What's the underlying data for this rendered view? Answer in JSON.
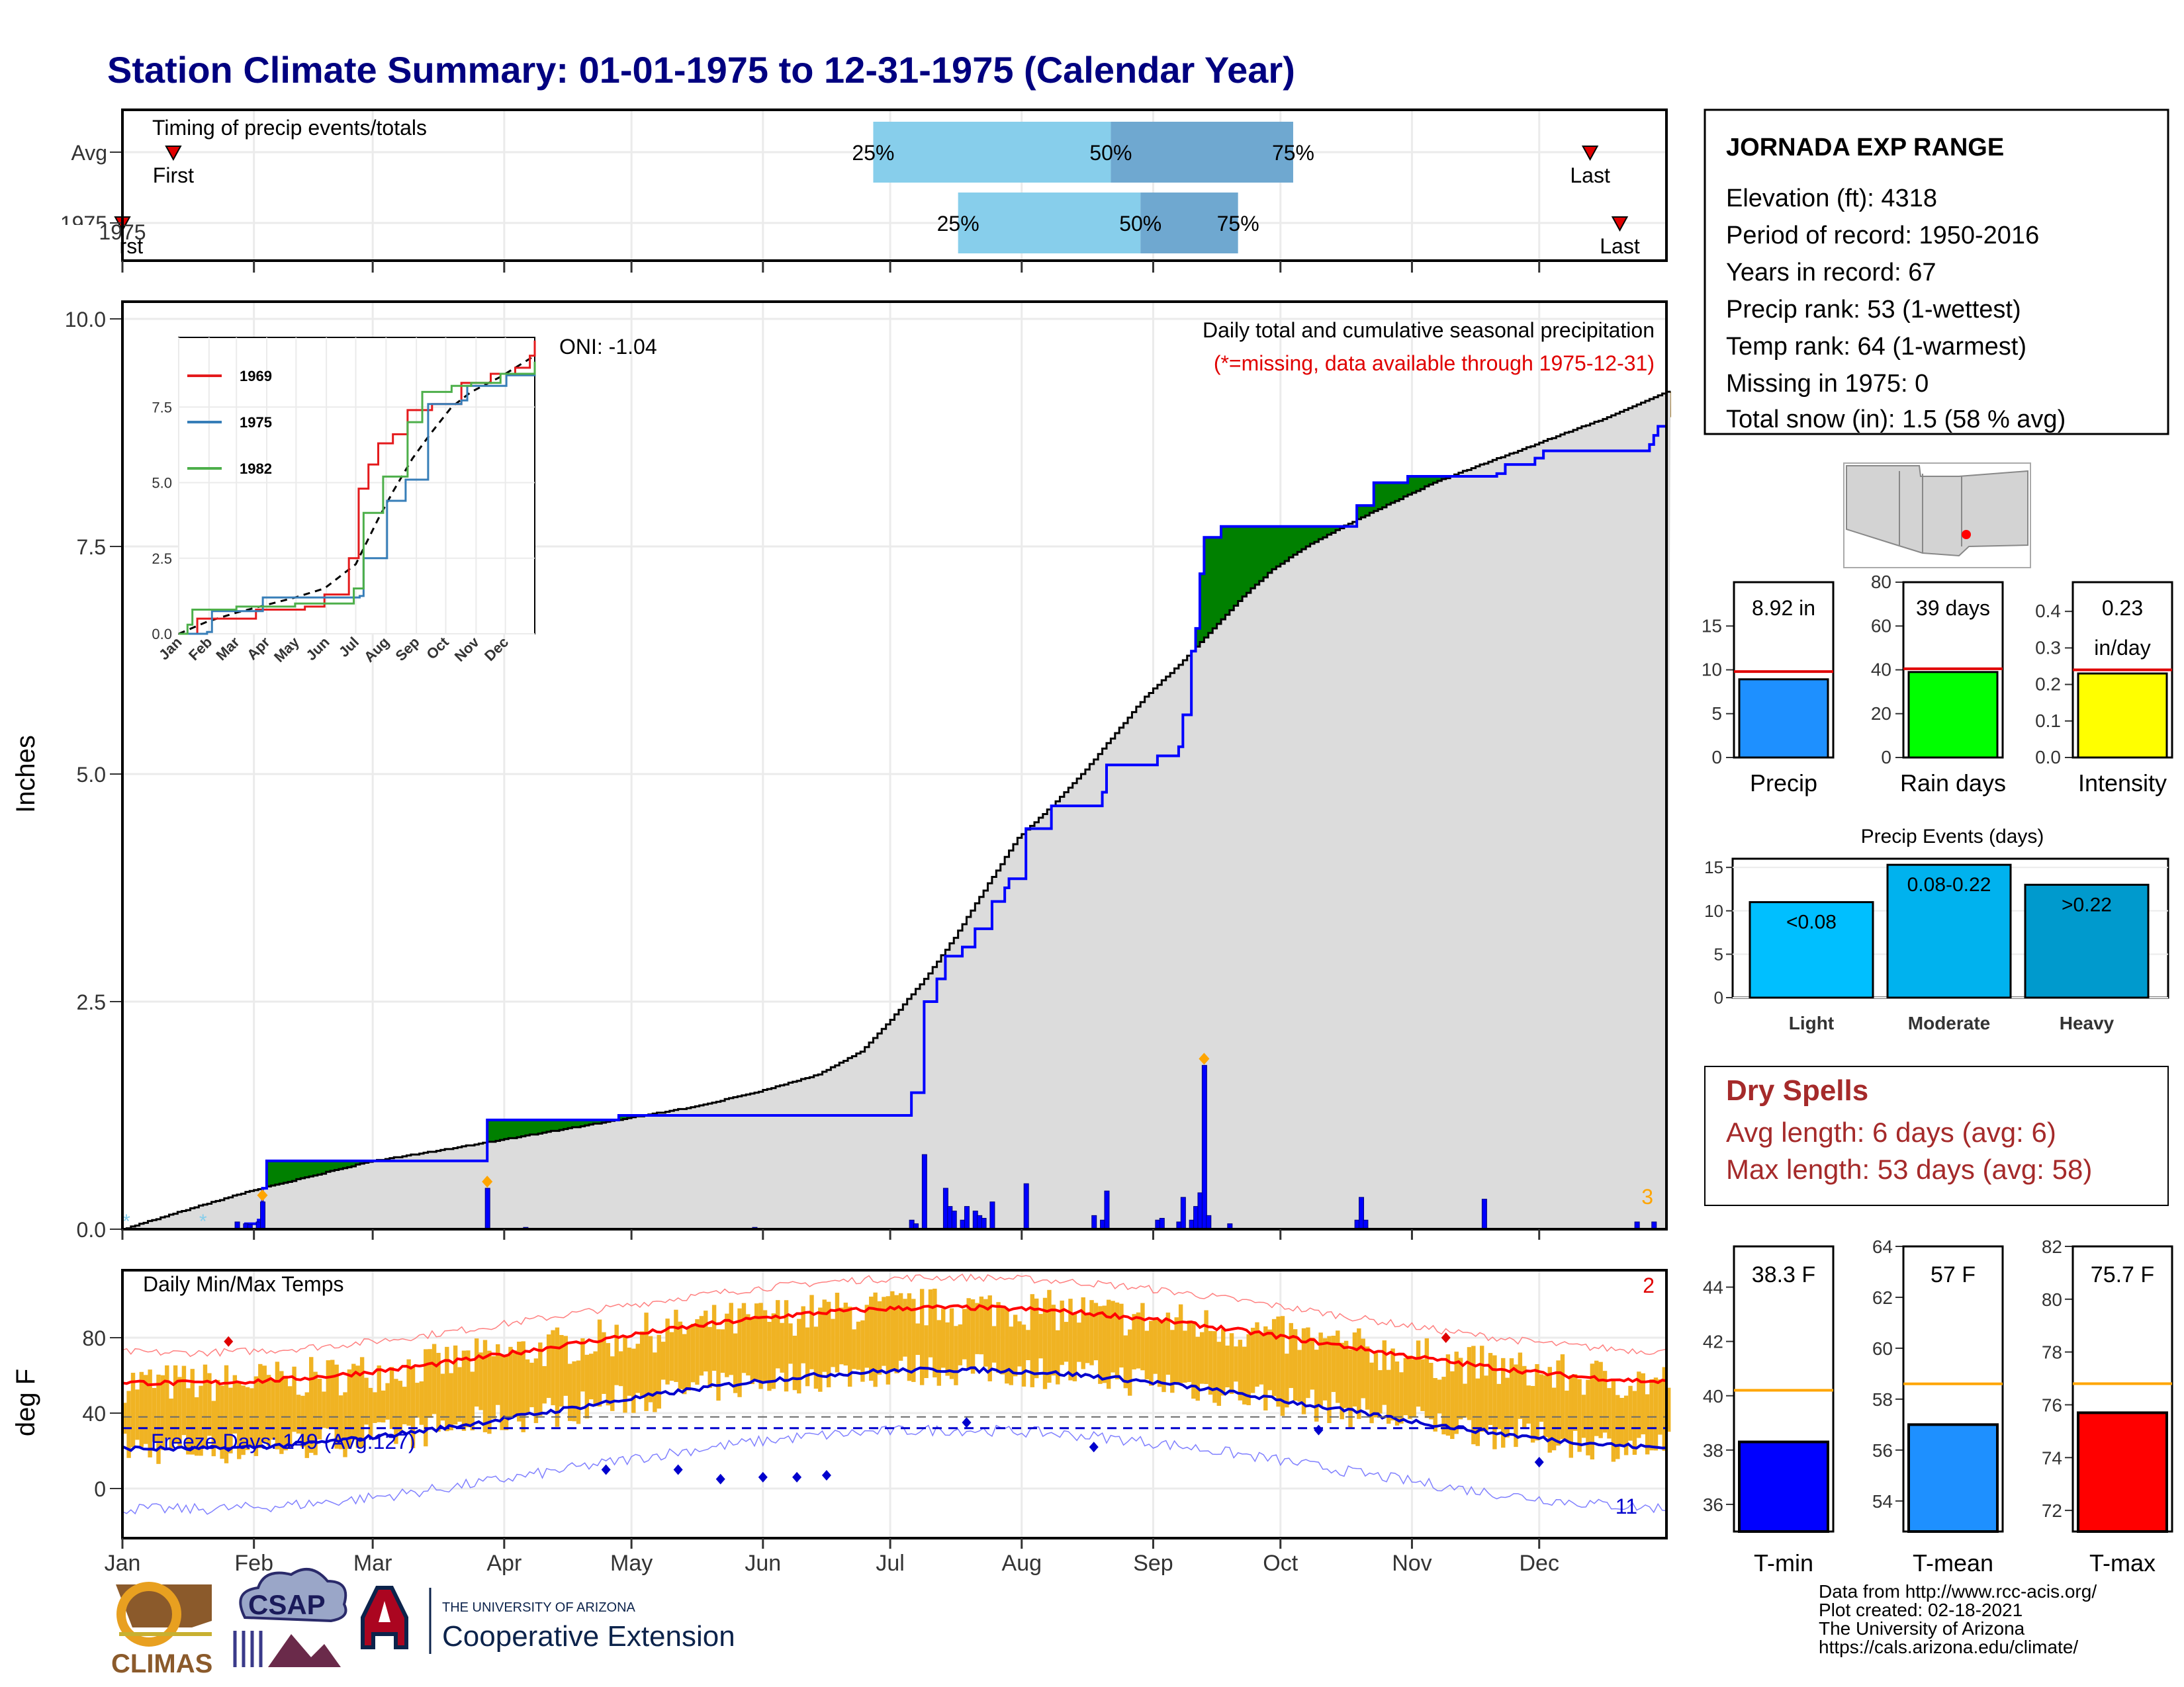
{
  "title": "Station Climate Summary: 01-01-1975 to 12-31-1975 (Calendar Year)",
  "station": {
    "name": "JORNADA EXP RANGE",
    "lines": [
      "Elevation (ft): 4318",
      "Period of record: 1950-2016",
      "Years in record: 67",
      "Precip rank: 53 (1-wettest)",
      "Temp rank: 64 (1-warmest)",
      "Missing in 1975: 0",
      "Total snow (in): 1.5 (58 % avg)"
    ]
  },
  "months": [
    "Jan",
    "Feb",
    "Mar",
    "Apr",
    "May",
    "Jun",
    "Jul",
    "Aug",
    "Sep",
    "Oct",
    "Nov",
    "Dec"
  ],
  "timing": {
    "label": "Timing of precip events/totals",
    "rows": [
      "Avg",
      "1975"
    ],
    "pct_labels": [
      "25%",
      "50%",
      "75%"
    ],
    "first": "First",
    "last": "Last",
    "avg": {
      "first_doy": 13,
      "q25_doy": 178,
      "q50_doy": 234,
      "q75_doy": 277,
      "last_doy": 347
    },
    "y1975": {
      "first_doy": 1,
      "q25_doy": 198,
      "q50_doy": 241,
      "q75_doy": 264,
      "last_doy": 354
    }
  },
  "precip": {
    "y_label": "Inches",
    "y_ticks": [
      "0.0",
      "2.5",
      "5.0",
      "7.5",
      "10.0"
    ],
    "oni": "ONI: -1.04",
    "caption1": "Daily total and cumulative seasonal precipitation",
    "caption2": "(*=missing, data available through 1975-12-31)",
    "snow_count": "3",
    "color_wetter": "#008000",
    "color_drier": "#8B5A00",
    "avg_cum": [
      [
        1,
        0.0
      ],
      [
        15,
        0.2
      ],
      [
        31,
        0.42
      ],
      [
        45,
        0.58
      ],
      [
        59,
        0.74
      ],
      [
        75,
        0.86
      ],
      [
        90,
        0.98
      ],
      [
        105,
        1.1
      ],
      [
        120,
        1.22
      ],
      [
        135,
        1.34
      ],
      [
        150,
        1.5
      ],
      [
        165,
        1.7
      ],
      [
        175,
        1.95
      ],
      [
        182,
        2.3
      ],
      [
        190,
        2.75
      ],
      [
        197,
        3.2
      ],
      [
        205,
        3.8
      ],
      [
        212,
        4.3
      ],
      [
        220,
        4.65
      ],
      [
        228,
        5.05
      ],
      [
        235,
        5.45
      ],
      [
        242,
        5.85
      ],
      [
        250,
        6.2
      ],
      [
        258,
        6.6
      ],
      [
        265,
        6.95
      ],
      [
        272,
        7.25
      ],
      [
        280,
        7.5
      ],
      [
        290,
        7.75
      ],
      [
        300,
        7.98
      ],
      [
        310,
        8.2
      ],
      [
        320,
        8.38
      ],
      [
        330,
        8.55
      ],
      [
        340,
        8.73
      ],
      [
        350,
        8.9
      ],
      [
        365,
        9.2
      ]
    ],
    "cum_1975": [
      [
        1,
        0.0
      ],
      [
        30,
        0.06
      ],
      [
        33,
        0.1
      ],
      [
        34,
        0.45
      ],
      [
        35,
        0.75
      ],
      [
        60,
        0.75
      ],
      [
        86,
        0.75
      ],
      [
        87,
        1.2
      ],
      [
        118,
        1.25
      ],
      [
        145,
        1.25
      ],
      [
        186,
        1.25
      ],
      [
        187,
        1.5
      ],
      [
        190,
        2.5
      ],
      [
        193,
        2.75
      ],
      [
        195,
        3.0
      ],
      [
        199,
        3.1
      ],
      [
        202,
        3.3
      ],
      [
        206,
        3.6
      ],
      [
        209,
        3.75
      ],
      [
        210,
        3.85
      ],
      [
        214,
        4.4
      ],
      [
        220,
        4.65
      ],
      [
        232,
        4.8
      ],
      [
        233,
        5.1
      ],
      [
        245,
        5.2
      ],
      [
        250,
        5.3
      ],
      [
        251,
        5.65
      ],
      [
        253,
        6.35
      ],
      [
        254,
        6.6
      ],
      [
        255,
        7.2
      ],
      [
        256,
        7.6
      ],
      [
        260,
        7.72
      ],
      [
        290,
        7.72
      ],
      [
        292,
        7.95
      ],
      [
        296,
        8.2
      ],
      [
        304,
        8.27
      ],
      [
        325,
        8.3
      ],
      [
        327,
        8.4
      ],
      [
        334,
        8.47
      ],
      [
        336,
        8.55
      ],
      [
        361,
        8.62
      ],
      [
        362,
        8.72
      ],
      [
        363,
        8.82
      ],
      [
        365,
        8.92
      ]
    ],
    "daily": [
      [
        28,
        0.08
      ],
      [
        30,
        0.06
      ],
      [
        31,
        0.05
      ],
      [
        33,
        0.08
      ],
      [
        34,
        0.3
      ],
      [
        87,
        0.45
      ],
      [
        96,
        0.02
      ],
      [
        150,
        0.02
      ],
      [
        187,
        0.1
      ],
      [
        188,
        0.06
      ],
      [
        190,
        0.82
      ],
      [
        195,
        0.45
      ],
      [
        196,
        0.25
      ],
      [
        197,
        0.2
      ],
      [
        199,
        0.1
      ],
      [
        200,
        0.25
      ],
      [
        202,
        0.2
      ],
      [
        203,
        0.15
      ],
      [
        204,
        0.12
      ],
      [
        206,
        0.3
      ],
      [
        214,
        0.5
      ],
      [
        230,
        0.15
      ],
      [
        232,
        0.1
      ],
      [
        233,
        0.42
      ],
      [
        245,
        0.1
      ],
      [
        246,
        0.12
      ],
      [
        250,
        0.08
      ],
      [
        251,
        0.35
      ],
      [
        253,
        0.1
      ],
      [
        254,
        0.25
      ],
      [
        255,
        0.4
      ],
      [
        256,
        1.8
      ],
      [
        257,
        0.15
      ],
      [
        262,
        0.06
      ],
      [
        292,
        0.1
      ],
      [
        293,
        0.35
      ],
      [
        294,
        0.1
      ],
      [
        322,
        0.33
      ],
      [
        358,
        0.08
      ],
      [
        362,
        0.08
      ]
    ],
    "markers_orange": [
      [
        34,
        0.3
      ],
      [
        87,
        0.45
      ],
      [
        256,
        1.8
      ]
    ],
    "snow_doys": [
      1,
      20
    ],
    "inset": {
      "legend": [
        "1969",
        "1975",
        "1982"
      ],
      "y_ticks": [
        "0.0",
        "2.5",
        "5.0",
        "7.5"
      ],
      "series": [
        {
          "name": "1969",
          "color": "#e41a1c",
          "values": [
            [
              1,
              0
            ],
            [
              20,
              0.5
            ],
            [
              80,
              0.8
            ],
            [
              130,
              0.9
            ],
            [
              150,
              1.3
            ],
            [
              175,
              2.5
            ],
            [
              185,
              4.8
            ],
            [
              195,
              5.6
            ],
            [
              205,
              6.3
            ],
            [
              220,
              6.6
            ],
            [
              235,
              7.4
            ],
            [
              260,
              7.6
            ],
            [
              290,
              8.3
            ],
            [
              320,
              8.6
            ],
            [
              345,
              8.8
            ],
            [
              360,
              9.2
            ],
            [
              365,
              9.7
            ]
          ]
        },
        {
          "name": "1975",
          "color": "#377eb8",
          "values": [
            [
              1,
              0
            ],
            [
              30,
              0.06
            ],
            [
              35,
              0.75
            ],
            [
              86,
              0.75
            ],
            [
              87,
              1.2
            ],
            [
              186,
              1.25
            ],
            [
              190,
              2.5
            ],
            [
              214,
              4.4
            ],
            [
              233,
              5.1
            ],
            [
              256,
              7.6
            ],
            [
              290,
              7.72
            ],
            [
              296,
              8.2
            ],
            [
              336,
              8.55
            ],
            [
              365,
              8.92
            ]
          ]
        },
        {
          "name": "1982",
          "color": "#4daf4a",
          "values": [
            [
              1,
              0
            ],
            [
              10,
              0.3
            ],
            [
              15,
              0.8
            ],
            [
              60,
              0.9
            ],
            [
              120,
              1.0
            ],
            [
              180,
              1.5
            ],
            [
              190,
              4.0
            ],
            [
              210,
              5.2
            ],
            [
              235,
              7.0
            ],
            [
              250,
              8.0
            ],
            [
              280,
              8.2
            ],
            [
              300,
              8.3
            ],
            [
              330,
              8.6
            ],
            [
              365,
              9.0
            ]
          ]
        }
      ],
      "avg": [
        [
          1,
          0
        ],
        [
          30,
          0.4
        ],
        [
          60,
          0.7
        ],
        [
          90,
          0.95
        ],
        [
          120,
          1.2
        ],
        [
          150,
          1.5
        ],
        [
          182,
          2.3
        ],
        [
          205,
          3.8
        ],
        [
          220,
          4.7
        ],
        [
          240,
          5.8
        ],
        [
          258,
          6.6
        ],
        [
          280,
          7.5
        ],
        [
          300,
          8.0
        ],
        [
          330,
          8.5
        ],
        [
          365,
          9.2
        ]
      ]
    }
  },
  "temps": {
    "y_label": "deg F",
    "y_ticks": [
      "0",
      "40",
      "80"
    ],
    "label": "Daily Min/Max Temps",
    "freeze": "Freeze Days: 149 (Avg:127)",
    "max_count": "2",
    "min_count": "11",
    "record_max_markers": [
      [
        26,
        78
      ],
      [
        313,
        80
      ]
    ],
    "record_min_markers": [
      [
        115,
        10
      ],
      [
        132,
        10
      ],
      [
        142,
        5
      ],
      [
        152,
        6
      ],
      [
        160,
        6
      ],
      [
        167,
        7
      ],
      [
        230,
        22
      ],
      [
        200,
        35
      ],
      [
        283,
        31
      ],
      [
        335,
        14
      ]
    ]
  },
  "bars": {
    "precip_value": "8.92 in",
    "rain_days_value": "39 days",
    "intensity_value": "0.23",
    "intensity_unit": "in/day",
    "labels": [
      "Precip",
      "Rain days",
      "Intensity"
    ],
    "precip": {
      "value": 8.92,
      "avg": 9.8,
      "ylim": [
        0,
        20
      ],
      "ticks": [
        "0",
        "5",
        "10",
        "15"
      ],
      "color": "#1e90ff"
    },
    "rain_days": {
      "value": 39,
      "avg": 40.5,
      "ylim": [
        0,
        80
      ],
      "ticks": [
        "0",
        "20",
        "40",
        "60",
        "80"
      ],
      "color": "#00ff00"
    },
    "intensity": {
      "value": 0.23,
      "avg": 0.24,
      "ylim": [
        0,
        0.48
      ],
      "ticks": [
        "0.0",
        "0.1",
        "0.2",
        "0.3",
        "0.4"
      ],
      "color": "#ffff00"
    }
  },
  "events": {
    "title": "Precip Events (days)",
    "categories": [
      "Light",
      "Moderate",
      "Heavy"
    ],
    "labels": [
      "<0.08",
      "0.08-0.22",
      ">0.22"
    ],
    "values": [
      11,
      15.3,
      13
    ],
    "ticks": [
      "0",
      "5",
      "10",
      "15"
    ],
    "colors": [
      "#00bfff",
      "#00b2ee",
      "#009acd"
    ]
  },
  "dry": {
    "title": "Dry Spells",
    "avg": "Avg length: 6 days (avg: 6)",
    "max": "Max length: 53 days (avg: 58)",
    "color": "#a52a2a"
  },
  "tbars": {
    "labels": [
      "T-min",
      "T-mean",
      "T-max"
    ],
    "values_text": [
      "38.3 F",
      "57 F",
      "75.7 F"
    ],
    "tmin": {
      "value": 38.3,
      "avg": 40.2,
      "ylim": [
        35,
        45.5
      ],
      "ticks": [
        "36",
        "38",
        "40",
        "42",
        "44"
      ],
      "color": "#0000ff"
    },
    "tmean": {
      "value": 57,
      "avg": 58.6,
      "ylim": [
        52.8,
        64
      ],
      "ticks": [
        "54",
        "56",
        "58",
        "60",
        "62",
        "64"
      ],
      "color": "#1e90ff"
    },
    "tmax": {
      "value": 75.7,
      "avg": 76.8,
      "ylim": [
        71.2,
        82
      ],
      "ticks": [
        "72",
        "74",
        "76",
        "78",
        "80",
        "82"
      ],
      "color": "#ff0000"
    }
  },
  "footer": {
    "lines": [
      "Data from http://www.rcc-acis.org/",
      "Plot created: 02-18-2021",
      "The University of Arizona",
      "https://cals.arizona.edu/climate/"
    ],
    "climas": "CLIMAS",
    "csap": "CSAP",
    "ua_small": "THE UNIVERSITY OF ARIZONA",
    "ua_big": "Cooperative Extension"
  }
}
